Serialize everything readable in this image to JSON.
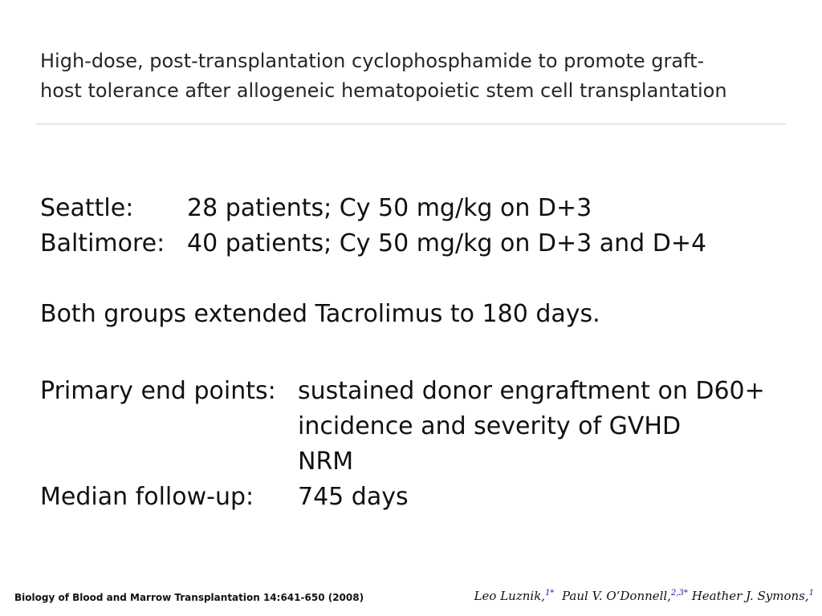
{
  "title": {
    "line1": "High-dose, post-transplantation cyclophosphamide to promote graft-",
    "line2": "host tolerance after allogeneic hematopoietic stem cell transplantation"
  },
  "sites": [
    {
      "label": "Seattle:",
      "value": "28 patients; Cy 50 mg/kg on D+3"
    },
    {
      "label": "Baltimore:",
      "value": "40 patients; Cy 50 mg/kg on D+3 and D+4"
    }
  ],
  "tacrolimus_note": "Both groups extended Tacrolimus to 180 days.",
  "primary_endpoints": {
    "label": "Primary end points:",
    "items": [
      "sustained donor engraftment on D60+",
      "incidence and severity of GVHD",
      "NRM"
    ]
  },
  "median_followup": {
    "label": "Median follow-up:",
    "value": "745 days"
  },
  "citation": "Biology of Blood and Marrow Transplantation 14:641-650 (2008)",
  "authors": [
    {
      "name": "Leo Luznik,",
      "affil": "1*"
    },
    {
      "name": "Paul V. O’Donnell,",
      "affil": "2,3*"
    },
    {
      "name": "Heather J. Symons,",
      "affil": "1"
    }
  ]
}
